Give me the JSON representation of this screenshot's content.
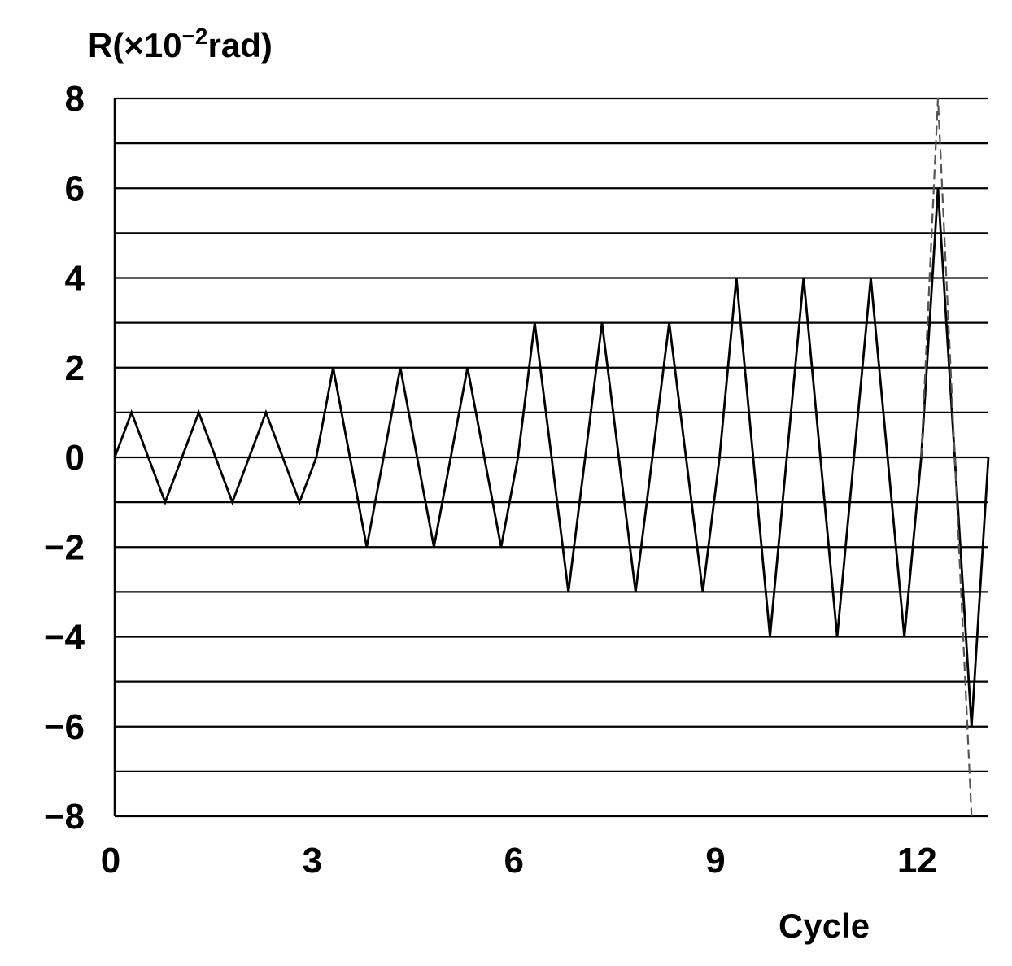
{
  "chart_data": {
    "type": "line",
    "ylabel": {
      "prefix": "R(×10",
      "exponent": "−2",
      "suffix": "rad)"
    },
    "xlabel": "Cycle",
    "x_ticks": [
      "0",
      "3",
      "6",
      "9",
      "12"
    ],
    "y_ticks": [
      "8",
      "6",
      "4",
      "2",
      "0",
      "−2",
      "−4",
      "−6",
      "−8"
    ],
    "xlim": [
      0,
      13
    ],
    "ylim": [
      -8,
      8
    ],
    "grid": {
      "horizontal": true,
      "y_step": 1
    },
    "series": [
      {
        "style": "solid",
        "color": "#000000",
        "x": [
          0,
          0.25,
          0.75,
          1.25,
          1.75,
          2.25,
          2.75,
          3.0,
          3.25,
          3.75,
          4.25,
          4.75,
          5.25,
          5.75,
          6.0,
          6.25,
          6.75,
          7.25,
          7.75,
          8.25,
          8.75,
          9.0,
          9.25,
          9.75,
          10.25,
          10.75,
          11.25,
          11.75,
          12.0,
          12.25,
          12.75,
          13.0
        ],
        "y": [
          0,
          1,
          -1,
          1,
          -1,
          1,
          -1,
          0,
          2,
          -2,
          2,
          -2,
          2,
          -2,
          0,
          3,
          -3,
          3,
          -3,
          3,
          -3,
          0,
          4,
          -4,
          4,
          -4,
          4,
          -4,
          0,
          6,
          -6,
          0
        ]
      },
      {
        "style": "dashed",
        "color": "#555555",
        "x": [
          12.0,
          12.25,
          12.75
        ],
        "y": [
          0,
          8,
          -8
        ]
      }
    ]
  }
}
